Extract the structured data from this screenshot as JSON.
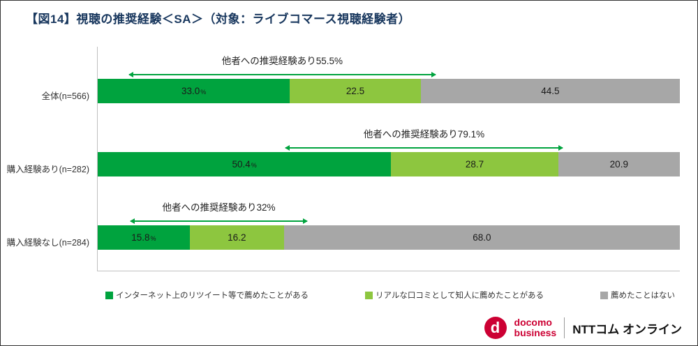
{
  "title": "【図14】視聴の推奨経験＜SA＞（対象：ライブコマース視聴経験者）",
  "colors": {
    "dark_green": "#00A33E",
    "light_green": "#8DC63F",
    "gray": "#A7A7A7",
    "arrow_green": "#00A33E",
    "axis_gray": "#BFBFBF",
    "docomo_red": "#CC0033"
  },
  "chart_data": {
    "type": "bar",
    "orientation": "horizontal",
    "stacked": true,
    "xlim": [
      0,
      100
    ],
    "grid": false,
    "legend_position": "bottom",
    "series_names": [
      "インターネット上のリツイート等で薦めたことがある",
      "リアルな口コミとして知人に薦めたことがある",
      "薦めたことはない"
    ],
    "rows": [
      {
        "category": "全体(n=566)",
        "values": [
          33.0,
          22.5,
          44.5
        ],
        "labels": [
          "33.0",
          "22.5",
          "44.5"
        ],
        "suffix": "%",
        "annotation": {
          "text": "他者への推奨経験あり55.5%",
          "start_pct": 5.4,
          "end_pct": 58.0
        }
      },
      {
        "category": "購入経験あり(n=282)",
        "values": [
          50.4,
          28.7,
          20.9
        ],
        "labels": [
          "50.4",
          "28.7",
          "20.9"
        ],
        "suffix": "%",
        "annotation": {
          "text": "他者への推奨経験あり79.1%",
          "start_pct": 32.3,
          "end_pct": 79.8
        }
      },
      {
        "category": "購入経験なし(n=284)",
        "values": [
          15.8,
          16.2,
          68.0
        ],
        "labels": [
          "15.8",
          "16.2",
          "68.0"
        ],
        "suffix": "%",
        "annotation": {
          "text": "他者への推奨経験あり32%",
          "start_pct": 5.6,
          "end_pct": 36.0
        }
      }
    ],
    "legend": [
      {
        "label": "インターネット上のリツイート等で薦めたことがある",
        "color": "#00A33E"
      },
      {
        "label": "リアルな口コミとして知人に薦めたことがある",
        "color": "#8DC63F"
      },
      {
        "label": "薦めたことはない",
        "color": "#A7A7A7"
      }
    ]
  },
  "footer": {
    "docomo_d": "d",
    "docomo_line1": "docomo",
    "docomo_line2": "business",
    "ntt_text": "NTTコム オンライン"
  }
}
